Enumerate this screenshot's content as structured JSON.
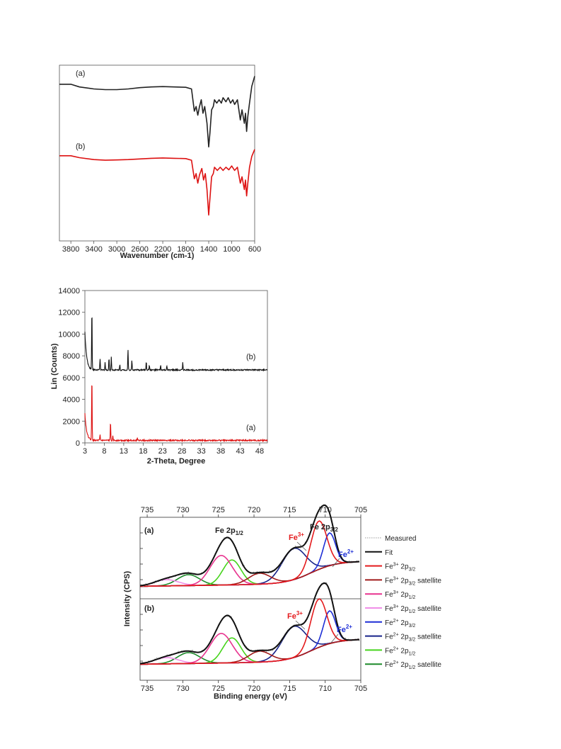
{
  "chart_data": [
    {
      "type": "line",
      "xlabel": "Wavenumber (cm-1)",
      "ylabel": "",
      "xlim": [
        3999,
        600
      ],
      "x_reversed": true,
      "x_ticks": [
        "3800",
        "3400",
        "3000",
        "2600",
        "2200",
        "1800",
        "1400",
        "1000",
        "600"
      ],
      "series": [
        {
          "name": "(a)",
          "color": "#222222",
          "points": [
            [
              3999,
              0.02
            ],
            [
              3800,
              0.02
            ],
            [
              3650,
              0.06
            ],
            [
              3400,
              0.09
            ],
            [
              3200,
              0.1
            ],
            [
              3000,
              0.1
            ],
            [
              2800,
              0.09
            ],
            [
              2600,
              0.07
            ],
            [
              2400,
              0.06
            ],
            [
              2200,
              0.055
            ],
            [
              2000,
              0.06
            ],
            [
              1800,
              0.065
            ],
            [
              1700,
              0.09
            ],
            [
              1650,
              0.42
            ],
            [
              1620,
              0.35
            ],
            [
              1590,
              0.48
            ],
            [
              1560,
              0.35
            ],
            [
              1530,
              0.25
            ],
            [
              1500,
              0.45
            ],
            [
              1470,
              0.35
            ],
            [
              1430,
              0.6
            ],
            [
              1400,
              0.95
            ],
            [
              1380,
              0.75
            ],
            [
              1350,
              0.4
            ],
            [
              1320,
              0.35
            ],
            [
              1300,
              0.25
            ],
            [
              1260,
              0.3
            ],
            [
              1220,
              0.25
            ],
            [
              1180,
              0.3
            ],
            [
              1150,
              0.22
            ],
            [
              1100,
              0.28
            ],
            [
              1060,
              0.22
            ],
            [
              1020,
              0.3
            ],
            [
              980,
              0.25
            ],
            [
              950,
              0.32
            ],
            [
              900,
              0.25
            ],
            [
              850,
              0.55
            ],
            [
              820,
              0.4
            ],
            [
              780,
              0.6
            ],
            [
              760,
              0.45
            ],
            [
              740,
              0.72
            ],
            [
              720,
              0.5
            ],
            [
              690,
              0.3
            ],
            [
              650,
              0.05
            ],
            [
              600,
              -0.1
            ]
          ]
        },
        {
          "name": "(b)",
          "color": "#dd1111",
          "points": [
            [
              3999,
              0.02
            ],
            [
              3800,
              0.02
            ],
            [
              3650,
              0.05
            ],
            [
              3400,
              0.08
            ],
            [
              3200,
              0.09
            ],
            [
              3000,
              0.085
            ],
            [
              2800,
              0.08
            ],
            [
              2600,
              0.07
            ],
            [
              2400,
              0.06
            ],
            [
              2200,
              0.055
            ],
            [
              2000,
              0.06
            ],
            [
              1800,
              0.065
            ],
            [
              1700,
              0.09
            ],
            [
              1650,
              0.38
            ],
            [
              1620,
              0.3
            ],
            [
              1590,
              0.45
            ],
            [
              1560,
              0.32
            ],
            [
              1520,
              0.22
            ],
            [
              1490,
              0.4
            ],
            [
              1460,
              0.3
            ],
            [
              1430,
              0.55
            ],
            [
              1400,
              0.95
            ],
            [
              1380,
              0.7
            ],
            [
              1350,
              0.35
            ],
            [
              1320,
              0.3
            ],
            [
              1300,
              0.2
            ],
            [
              1250,
              0.25
            ],
            [
              1200,
              0.2
            ],
            [
              1150,
              0.25
            ],
            [
              1100,
              0.2
            ],
            [
              1050,
              0.24
            ],
            [
              1000,
              0.18
            ],
            [
              950,
              0.25
            ],
            [
              900,
              0.2
            ],
            [
              850,
              0.45
            ],
            [
              820,
              0.35
            ],
            [
              780,
              0.55
            ],
            [
              760,
              0.4
            ],
            [
              740,
              0.65
            ],
            [
              720,
              0.45
            ],
            [
              690,
              0.2
            ],
            [
              650,
              0.03
            ],
            [
              600,
              -0.08
            ]
          ]
        }
      ]
    },
    {
      "type": "line",
      "xlabel": "2-Theta, Degree",
      "ylabel": "Lin (Counts)",
      "xlim": [
        3,
        50
      ],
      "ylim": [
        0,
        14000
      ],
      "x_ticks": [
        3,
        8,
        13,
        18,
        23,
        28,
        33,
        38,
        43,
        48
      ],
      "y_ticks": [
        0,
        2000,
        4000,
        6000,
        8000,
        10000,
        12000,
        14000
      ],
      "series": [
        {
          "name": "(b)",
          "color": "#111111",
          "baseline": 6700,
          "peaks": [
            [
              4.8,
              5700
            ],
            [
              6.9,
              1100
            ],
            [
              8.2,
              700
            ],
            [
              9.2,
              1100
            ],
            [
              9.8,
              1200
            ],
            [
              12.0,
              500
            ],
            [
              14.1,
              1900
            ],
            [
              15.1,
              900
            ],
            [
              18.8,
              800
            ],
            [
              19.6,
              500
            ],
            [
              22.5,
              400
            ],
            [
              24.1,
              350
            ],
            [
              28.2,
              700
            ]
          ],
          "start": [
            3,
            10200
          ]
        },
        {
          "name": "(a)",
          "color": "#dd1111",
          "baseline": 230,
          "peaks": [
            [
              4.8,
              6000
            ],
            [
              6.9,
              500
            ],
            [
              9.6,
              1800
            ],
            [
              10.2,
              400
            ],
            [
              16.5,
              300
            ]
          ],
          "start": [
            3,
            2700
          ]
        }
      ]
    },
    {
      "type": "line",
      "xlabel": "Binding energy (eV)",
      "ylabel": "Intensity (CPS)",
      "xlim": [
        736,
        705
      ],
      "x_reversed": true,
      "x_ticks": [
        735,
        730,
        725,
        720,
        715,
        710,
        705
      ],
      "panels": [
        {
          "label": "(a)",
          "annotations": [
            "Fe 2p1/2",
            "Fe 2p3/2",
            "Fe3+",
            "Fe2+"
          ]
        },
        {
          "label": "(b)",
          "annotations": [
            "Fe3+",
            "Fe2+"
          ]
        }
      ],
      "components": [
        {
          "name": "Fe3+ 2p3/2",
          "color": "#e41a1c",
          "center": 710.9,
          "height": 0.62,
          "width": 1.6
        },
        {
          "name": "Fe3+ 2p3/2 satellite",
          "color": "#a01b1b",
          "center": 719.2,
          "height": 0.14,
          "width": 2.2
        },
        {
          "name": "Fe3+ 2p1/2",
          "color": "#e8348f",
          "center": 724.6,
          "height": 0.38,
          "width": 2.2
        },
        {
          "name": "Fe3+ 2p1/2 satellite",
          "color": "#f08ee8",
          "center": 732.3,
          "height": 0.08,
          "width": 2.4
        },
        {
          "name": "Fe2+ 2p3/2",
          "color": "#1e2fd6",
          "center": 709.4,
          "height": 0.42,
          "width": 1.2
        },
        {
          "name": "Fe2+ 2p3/2 satellite",
          "color": "#17238a",
          "center": 714.4,
          "height": 0.4,
          "width": 2.4
        },
        {
          "name": "Fe2+ 2p1/2",
          "color": "#46d41c",
          "center": 723.1,
          "height": 0.32,
          "width": 1.8
        },
        {
          "name": "Fe2+ 2p1/2 satellite",
          "color": "#1d8a2a",
          "center": 729.2,
          "height": 0.14,
          "width": 2.2
        }
      ],
      "legend": {
        "position": "right",
        "entries": [
          {
            "label": "Measured",
            "sup": "",
            "sub": "",
            "tail": "",
            "color": "#999999",
            "dotted": true
          },
          {
            "label": "Fit",
            "sup": "",
            "sub": "",
            "tail": "",
            "color": "#111111"
          },
          {
            "label": "Fe",
            "sup": "3+",
            "mid": " 2p",
            "sub": "3/2",
            "tail": "",
            "color": "#e41a1c"
          },
          {
            "label": "Fe",
            "sup": "3+",
            "mid": " 2p",
            "sub": "3/2",
            "tail": " satellite",
            "color": "#a01b1b"
          },
          {
            "label": "Fe",
            "sup": "3+",
            "mid": " 2p",
            "sub": "1/2",
            "tail": "",
            "color": "#e8348f"
          },
          {
            "label": "Fe",
            "sup": "3+",
            "mid": " 2p",
            "sub": "1/2",
            "tail": " satellite",
            "color": "#f08ee8"
          },
          {
            "label": "Fe",
            "sup": "2+",
            "mid": " 2p",
            "sub": "3/2",
            "tail": "",
            "color": "#1e2fd6"
          },
          {
            "label": "Fe",
            "sup": "2+",
            "mid": " 2p",
            "sub": "3/2",
            "tail": " satellite",
            "color": "#17238a"
          },
          {
            "label": "Fe",
            "sup": "2+",
            "mid": " 2p",
            "sub": "1/2",
            "tail": "",
            "color": "#46d41c"
          },
          {
            "label": "Fe",
            "sup": "2+",
            "mid": " 2p",
            "sub": "1/2",
            "tail": " satellite",
            "color": "#1d8a2a"
          }
        ]
      }
    }
  ]
}
